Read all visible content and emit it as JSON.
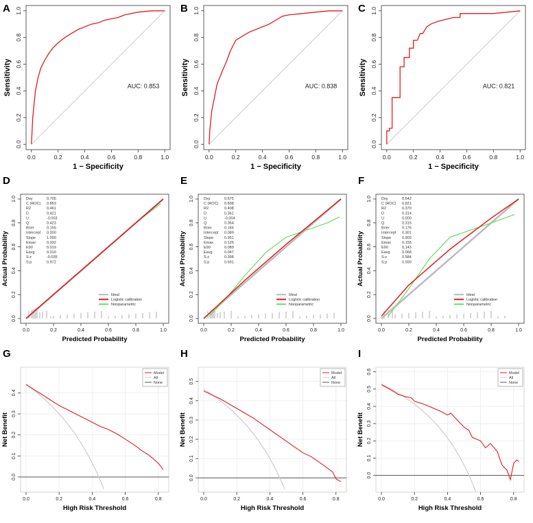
{
  "chart_data": [
    {
      "panel": "A",
      "type": "line",
      "kind": "roc",
      "xlabel": "1 − Specificity",
      "ylabel": "Sensitivity",
      "xlim": [
        0,
        1
      ],
      "ylim": [
        0,
        1
      ],
      "xticks": [
        "0.0",
        "0.2",
        "0.4",
        "0.6",
        "0.8",
        "1.0"
      ],
      "yticks": [
        "0.0",
        "0.2",
        "0.4",
        "0.6",
        "0.8",
        "1.0"
      ],
      "annotation": "AUC: 0.853",
      "color": "#e41a1c",
      "x": [
        0,
        0.005,
        0.01,
        0.02,
        0.03,
        0.05,
        0.07,
        0.1,
        0.13,
        0.16,
        0.2,
        0.25,
        0.3,
        0.35,
        0.4,
        0.45,
        0.5,
        0.55,
        0.6,
        0.65,
        0.7,
        0.8,
        0.9,
        1
      ],
      "y": [
        0,
        0.1,
        0.2,
        0.3,
        0.4,
        0.5,
        0.57,
        0.63,
        0.68,
        0.72,
        0.76,
        0.8,
        0.83,
        0.86,
        0.88,
        0.9,
        0.91,
        0.93,
        0.94,
        0.95,
        0.97,
        0.99,
        1,
        1
      ]
    },
    {
      "panel": "B",
      "type": "line",
      "kind": "roc",
      "xlabel": "1 − Specificity",
      "ylabel": "Sensitivity",
      "xlim": [
        0,
        1
      ],
      "ylim": [
        0,
        1
      ],
      "xticks": [
        "0.0",
        "0.2",
        "0.4",
        "0.6",
        "0.8",
        "1.0"
      ],
      "yticks": [
        "0.0",
        "0.2",
        "0.4",
        "0.6",
        "0.8",
        "1.0"
      ],
      "annotation": "AUC: 0.838",
      "color": "#e41a1c",
      "x": [
        0,
        0.005,
        0.01,
        0.02,
        0.04,
        0.06,
        0.08,
        0.1,
        0.13,
        0.16,
        0.2,
        0.25,
        0.3,
        0.35,
        0.4,
        0.45,
        0.5,
        0.55,
        0.6,
        0.7,
        0.8,
        0.9,
        1
      ],
      "y": [
        0,
        0.1,
        0.15,
        0.25,
        0.35,
        0.45,
        0.5,
        0.55,
        0.62,
        0.7,
        0.78,
        0.81,
        0.84,
        0.86,
        0.88,
        0.9,
        0.93,
        0.96,
        0.97,
        0.98,
        0.99,
        1,
        1
      ]
    },
    {
      "panel": "C",
      "type": "line",
      "kind": "roc",
      "xlabel": "1 − Specificity",
      "ylabel": "Sensitivity",
      "xlim": [
        0,
        1
      ],
      "ylim": [
        0,
        1
      ],
      "xticks": [
        "0.0",
        "0.2",
        "0.4",
        "0.6",
        "0.8",
        "1.0"
      ],
      "yticks": [
        "0.0",
        "0.2",
        "0.4",
        "0.6",
        "0.8",
        "1.0"
      ],
      "annotation": "AUC: 0.821",
      "color": "#e41a1c",
      "x": [
        0,
        0,
        0.02,
        0.02,
        0.04,
        0.04,
        0.1,
        0.1,
        0.13,
        0.13,
        0.17,
        0.17,
        0.2,
        0.2,
        0.23,
        0.25,
        0.27,
        0.3,
        0.33,
        0.38,
        0.42,
        0.5,
        0.55,
        0.55,
        0.8,
        1
      ],
      "y": [
        0,
        0.1,
        0.1,
        0.12,
        0.12,
        0.35,
        0.35,
        0.58,
        0.58,
        0.65,
        0.65,
        0.72,
        0.72,
        0.78,
        0.78,
        0.83,
        0.83,
        0.88,
        0.9,
        0.92,
        0.93,
        0.95,
        0.95,
        0.98,
        0.98,
        1
      ]
    },
    {
      "panel": "D",
      "type": "line",
      "kind": "calibration",
      "xlabel": "Predicted Probability",
      "ylabel": "Actual Probability",
      "xlim": [
        0,
        1
      ],
      "ylim": [
        0,
        1
      ],
      "xticks": [
        "0.0",
        "0.2",
        "0.4",
        "0.6",
        "0.8",
        "1.0"
      ],
      "yticks": [
        "0.0",
        "0.2",
        "0.4",
        "0.6",
        "0.8",
        "1.0"
      ],
      "stats": [
        [
          "Dxy",
          "0.705"
        ],
        [
          "C (ROC)",
          "0.853"
        ],
        [
          "R2",
          "0.461"
        ],
        [
          "D",
          "0.421"
        ],
        [
          "U",
          "-0.003"
        ],
        [
          "Q",
          "0.423"
        ],
        [
          "Brier",
          "0.155"
        ],
        [
          "Intercept",
          "0.000"
        ],
        [
          "Slope",
          "1.000"
        ],
        [
          "Emax",
          "0.032"
        ],
        [
          "E90",
          "0.019"
        ],
        [
          "Eavg",
          "0.010"
        ],
        [
          "S:z",
          "-0.035"
        ],
        [
          "S:p",
          "0.972"
        ]
      ],
      "legend": [
        "Ideal",
        "Logistic calibration",
        "Nonparametric"
      ],
      "colors": {
        "ideal": "#bbbbbb",
        "logistic": "#e41a1c",
        "nonparametric": "#66dd66"
      },
      "logistic": {
        "x": [
          0,
          1
        ],
        "y": [
          0,
          1
        ]
      },
      "nonparametric": {
        "x": [
          0.02,
          0.3,
          0.6,
          0.8,
          0.98
        ],
        "y": [
          0.02,
          0.3,
          0.6,
          0.8,
          0.96
        ]
      },
      "rug": [
        0.02,
        0.04,
        0.05,
        0.06,
        0.07,
        0.08,
        0.1,
        0.12,
        0.15,
        0.18,
        0.2,
        0.25,
        0.3,
        0.35,
        0.4,
        0.45,
        0.5,
        0.55,
        0.6,
        0.65,
        0.7,
        0.75,
        0.8,
        0.85,
        0.9,
        0.95
      ]
    },
    {
      "panel": "E",
      "type": "line",
      "kind": "calibration",
      "xlabel": "Predicted Probability",
      "ylabel": "Actual Probability",
      "xlim": [
        0,
        1
      ],
      "ylim": [
        0,
        1
      ],
      "xticks": [
        "0.0",
        "0.2",
        "0.4",
        "0.6",
        "0.8",
        "1.0"
      ],
      "yticks": [
        "0.0",
        "0.2",
        "0.4",
        "0.6",
        "0.8",
        "1.0"
      ],
      "stats": [
        [
          "Dxy",
          "0.675"
        ],
        [
          "C (ROC)",
          "0.838"
        ],
        [
          "R2",
          "0.408"
        ],
        [
          "D",
          "0.361"
        ],
        [
          "U",
          "-0.004"
        ],
        [
          "Q",
          "0.364"
        ],
        [
          "Brier",
          "0.166"
        ],
        [
          "Intercept",
          "0.089"
        ],
        [
          "Slope",
          "0.951"
        ],
        [
          "Emax",
          "0.126"
        ],
        [
          "E90",
          "0.089"
        ],
        [
          "Eavg",
          "0.047"
        ],
        [
          "S:z",
          "0.398"
        ],
        [
          "S:p",
          "0.691"
        ]
      ],
      "legend": [
        "Ideal",
        "Logistic calibration",
        "Nonparametric"
      ],
      "colors": {
        "ideal": "#bbbbbb",
        "logistic": "#e41a1c",
        "nonparametric": "#66dd66"
      },
      "logistic": {
        "x": [
          0,
          0.3,
          0.6,
          1
        ],
        "y": [
          0,
          0.32,
          0.62,
          1
        ]
      },
      "nonparametric": {
        "x": [
          0.04,
          0.15,
          0.3,
          0.45,
          0.6,
          0.75,
          0.9,
          0.99
        ],
        "y": [
          0.02,
          0.15,
          0.36,
          0.55,
          0.68,
          0.74,
          0.8,
          0.85
        ]
      },
      "rug": [
        0.03,
        0.05,
        0.06,
        0.07,
        0.08,
        0.1,
        0.12,
        0.15,
        0.2,
        0.25,
        0.3,
        0.35,
        0.4,
        0.45,
        0.5,
        0.55,
        0.6,
        0.65,
        0.7,
        0.75,
        0.8,
        0.85,
        0.9,
        0.95
      ]
    },
    {
      "panel": "F",
      "type": "line",
      "kind": "calibration",
      "xlabel": "Predicted Probability",
      "ylabel": "Actual Probability",
      "xlim": [
        0,
        1
      ],
      "ylim": [
        0,
        1
      ],
      "xticks": [
        "0.0",
        "0.2",
        "0.4",
        "0.6",
        "0.8",
        "1.0"
      ],
      "yticks": [
        "0.0",
        "0.2",
        "0.4",
        "0.6",
        "0.8",
        "1.0"
      ],
      "stats": [
        [
          "Dxy",
          "0.642"
        ],
        [
          "C (ROC)",
          "0.821"
        ],
        [
          "R2",
          "0.370"
        ],
        [
          "D",
          "0.314"
        ],
        [
          "U",
          "0.000"
        ],
        [
          "Q",
          "0.315"
        ],
        [
          "Brier",
          "0.176"
        ],
        [
          "Intercept",
          "0.301"
        ],
        [
          "Slope",
          "0.902"
        ],
        [
          "Emax",
          "0.155"
        ],
        [
          "E90",
          "0.143"
        ],
        [
          "Eavg",
          "0.068"
        ],
        [
          "S:z",
          "0.584"
        ],
        [
          "S:p",
          "0.559"
        ]
      ],
      "legend": [
        "Ideal",
        "Logistic calibration",
        "Nonparametric"
      ],
      "colors": {
        "ideal": "#bbbbbb",
        "logistic": "#e41a1c",
        "nonparametric": "#66dd66"
      },
      "logistic": {
        "x": [
          0,
          0.2,
          0.5,
          0.8,
          1
        ],
        "y": [
          0.02,
          0.28,
          0.58,
          0.84,
          1
        ]
      },
      "nonparametric": {
        "x": [
          0.05,
          0.2,
          0.35,
          0.5,
          0.65,
          0.8,
          0.97
        ],
        "y": [
          0.02,
          0.25,
          0.5,
          0.68,
          0.74,
          0.8,
          0.87
        ]
      },
      "rug": [
        0.02,
        0.05,
        0.08,
        0.1,
        0.15,
        0.2,
        0.25,
        0.3,
        0.35,
        0.4,
        0.45,
        0.5,
        0.55,
        0.6,
        0.65,
        0.7,
        0.75,
        0.8,
        0.85,
        0.9
      ]
    },
    {
      "panel": "G",
      "type": "line",
      "kind": "dca",
      "xlabel": "High Risk Threshold",
      "ylabel": "Net Benefit",
      "xlim": [
        0,
        0.83
      ],
      "ylim": [
        -0.05,
        0.5
      ],
      "xticks": [
        "0.0",
        "0.2",
        "0.4",
        "0.6",
        "0.8"
      ],
      "yticks": [
        "0.0",
        "0.1",
        "0.2",
        "0.3",
        "0.4"
      ],
      "yvals": [
        0,
        0.1,
        0.2,
        0.3,
        0.4
      ],
      "legend": [
        "Model",
        "All",
        "None"
      ],
      "colors": {
        "model": "#e41a1c",
        "all": "#cccccc",
        "none": "#555555"
      },
      "prevalence": 0.44,
      "model": {
        "x": [
          0,
          0.05,
          0.1,
          0.15,
          0.2,
          0.25,
          0.3,
          0.35,
          0.4,
          0.45,
          0.5,
          0.55,
          0.6,
          0.65,
          0.7,
          0.75,
          0.8,
          0.83
        ],
        "y": [
          0.44,
          0.415,
          0.39,
          0.365,
          0.34,
          0.32,
          0.3,
          0.28,
          0.26,
          0.24,
          0.225,
          0.205,
          0.18,
          0.155,
          0.125,
          0.1,
          0.065,
          0.035
        ]
      }
    },
    {
      "panel": "H",
      "type": "line",
      "kind": "dca",
      "xlabel": "High Risk Threshold",
      "ylabel": "Net Benefit",
      "xlim": [
        0,
        0.83
      ],
      "ylim": [
        -0.05,
        0.55
      ],
      "xticks": [
        "0.0",
        "0.2",
        "0.4",
        "0.6",
        "0.8"
      ],
      "yticks": [
        "0.0",
        "0.1",
        "0.2",
        "0.3",
        "0.4",
        "0.5"
      ],
      "yvals": [
        0,
        0.1,
        0.2,
        0.3,
        0.4,
        0.5
      ],
      "legend": [
        "Model",
        "All",
        "None"
      ],
      "colors": {
        "model": "#e41a1c",
        "all": "#cccccc",
        "none": "#555555"
      },
      "prevalence": 0.46,
      "model": {
        "x": [
          0,
          0.05,
          0.1,
          0.15,
          0.2,
          0.25,
          0.3,
          0.35,
          0.4,
          0.45,
          0.5,
          0.55,
          0.6,
          0.65,
          0.7,
          0.75,
          0.78,
          0.8,
          0.83
        ],
        "y": [
          0.45,
          0.43,
          0.41,
          0.385,
          0.36,
          0.335,
          0.31,
          0.28,
          0.25,
          0.22,
          0.19,
          0.16,
          0.13,
          0.11,
          0.08,
          0.05,
          0.03,
          -0.005,
          -0.02
        ]
      }
    },
    {
      "panel": "I",
      "type": "line",
      "kind": "dca",
      "xlabel": "High Risk Threshold",
      "ylabel": "Net Benefit",
      "xlim": [
        0,
        0.83
      ],
      "ylim": [
        -0.07,
        0.6
      ],
      "xticks": [
        "0.0",
        "0.2",
        "0.4",
        "0.6",
        "0.8"
      ],
      "yticks": [
        "0.0",
        "0.1",
        "0.2",
        "0.3",
        "0.4",
        "0.5",
        "0.6"
      ],
      "yvals": [
        0,
        0.1,
        0.2,
        0.3,
        0.4,
        0.5,
        0.6
      ],
      "legend": [
        "Model",
        "All",
        "None"
      ],
      "colors": {
        "model": "#e41a1c",
        "all": "#cccccc",
        "none": "#555555"
      },
      "prevalence": 0.53,
      "model": {
        "x": [
          0,
          0.05,
          0.1,
          0.15,
          0.18,
          0.2,
          0.25,
          0.3,
          0.35,
          0.4,
          0.42,
          0.45,
          0.5,
          0.53,
          0.55,
          0.6,
          0.63,
          0.66,
          0.7,
          0.73,
          0.76,
          0.78,
          0.8,
          0.82,
          0.83
        ],
        "y": [
          0.525,
          0.5,
          0.47,
          0.455,
          0.45,
          0.43,
          0.415,
          0.395,
          0.375,
          0.35,
          0.36,
          0.33,
          0.28,
          0.26,
          0.22,
          0.2,
          0.16,
          0.185,
          0.14,
          0.06,
          0.03,
          -0.025,
          0.07,
          0.09,
          0.08
        ]
      }
    }
  ]
}
